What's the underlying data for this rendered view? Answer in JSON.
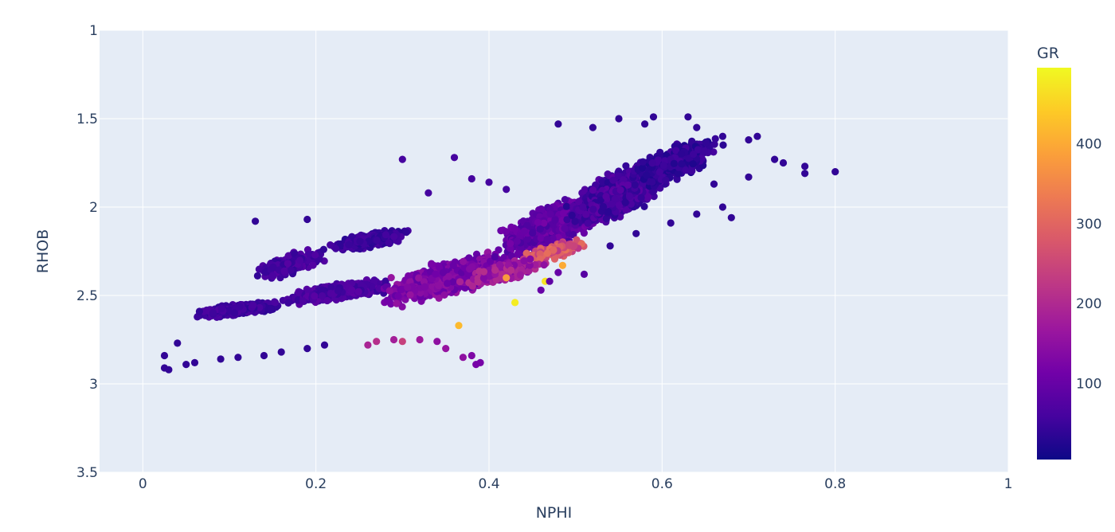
{
  "chart_data": {
    "type": "scatter",
    "title": "",
    "xlabel": "NPHI",
    "ylabel": "RHOB",
    "xlim": [
      -0.05,
      1.0
    ],
    "ylim": [
      1.0,
      3.5
    ],
    "y_reversed": true,
    "grid": true,
    "background_color": "#e5ecf6",
    "grid_color": "#ffffff",
    "x_ticks": [
      "0",
      "0.2",
      "0.4",
      "0.6",
      "0.8",
      "1"
    ],
    "x_tick_values": [
      0,
      0.2,
      0.4,
      0.6,
      0.8,
      1.0
    ],
    "y_ticks": [
      "1",
      "1.5",
      "2",
      "2.5",
      "3",
      "3.5"
    ],
    "y_tick_values": [
      1.0,
      1.5,
      2.0,
      2.5,
      3.0,
      3.5
    ],
    "colorbar": {
      "title": "GR",
      "range": [
        5,
        495
      ],
      "ticks": [
        "100",
        "200",
        "300",
        "400"
      ],
      "tick_values": [
        100,
        200,
        300,
        400
      ],
      "colorscale": [
        "#0d0887",
        "#46039f",
        "#7201a8",
        "#9c179e",
        "#bd3786",
        "#d8576b",
        "#ed7953",
        "#fb9f3a",
        "#fdca26",
        "#f0f921"
      ],
      "placement": "right"
    },
    "clusters": [
      {
        "x": [
          0.05,
          0.17
        ],
        "y": [
          2.52,
          2.64
        ],
        "gr": [
          35,
          70
        ],
        "n": 1100
      },
      {
        "x": [
          0.15,
          0.3
        ],
        "y": [
          2.38,
          2.58
        ],
        "gr": [
          45,
          90
        ],
        "n": 800
      },
      {
        "x": [
          0.12,
          0.22
        ],
        "y": [
          2.2,
          2.45
        ],
        "gr": [
          40,
          80
        ],
        "n": 260
      },
      {
        "x": [
          0.2,
          0.32
        ],
        "y": [
          2.1,
          2.28
        ],
        "gr": [
          30,
          65
        ],
        "n": 420
      },
      {
        "x": [
          0.26,
          0.45
        ],
        "y": [
          2.2,
          2.6
        ],
        "gr": [
          90,
          160
        ],
        "n": 1600
      },
      {
        "x": [
          0.4,
          0.55
        ],
        "y": [
          1.85,
          2.35
        ],
        "gr": [
          60,
          120
        ],
        "n": 1300
      },
      {
        "x": [
          0.48,
          0.62
        ],
        "y": [
          1.65,
          2.2
        ],
        "gr": [
          30,
          90
        ],
        "n": 1700
      },
      {
        "x": [
          0.55,
          0.68
        ],
        "y": [
          1.55,
          1.95
        ],
        "gr": [
          20,
          60
        ],
        "n": 600
      },
      {
        "x": [
          0.43,
          0.52
        ],
        "y": [
          2.15,
          2.35
        ],
        "gr": [
          220,
          320
        ],
        "n": 180
      },
      {
        "x": [
          0.36,
          0.48
        ],
        "y": [
          2.25,
          2.48
        ],
        "gr": [
          130,
          210
        ],
        "n": 200
      }
    ],
    "points": [
      {
        "x": 0.025,
        "y": 2.84,
        "gr": 40
      },
      {
        "x": 0.025,
        "y": 2.91,
        "gr": 40
      },
      {
        "x": 0.03,
        "y": 2.92,
        "gr": 40
      },
      {
        "x": 0.05,
        "y": 2.89,
        "gr": 40
      },
      {
        "x": 0.04,
        "y": 2.77,
        "gr": 40
      },
      {
        "x": 0.06,
        "y": 2.88,
        "gr": 40
      },
      {
        "x": 0.09,
        "y": 2.86,
        "gr": 40
      },
      {
        "x": 0.11,
        "y": 2.85,
        "gr": 40
      },
      {
        "x": 0.14,
        "y": 2.84,
        "gr": 40
      },
      {
        "x": 0.16,
        "y": 2.82,
        "gr": 40
      },
      {
        "x": 0.19,
        "y": 2.8,
        "gr": 40
      },
      {
        "x": 0.21,
        "y": 2.78,
        "gr": 40
      },
      {
        "x": 0.13,
        "y": 2.08,
        "gr": 40
      },
      {
        "x": 0.19,
        "y": 2.07,
        "gr": 40
      },
      {
        "x": 0.26,
        "y": 2.78,
        "gr": 190
      },
      {
        "x": 0.27,
        "y": 2.76,
        "gr": 210
      },
      {
        "x": 0.29,
        "y": 2.75,
        "gr": 180
      },
      {
        "x": 0.3,
        "y": 2.76,
        "gr": 240
      },
      {
        "x": 0.32,
        "y": 2.75,
        "gr": 170
      },
      {
        "x": 0.34,
        "y": 2.76,
        "gr": 150
      },
      {
        "x": 0.35,
        "y": 2.8,
        "gr": 160
      },
      {
        "x": 0.37,
        "y": 2.85,
        "gr": 150
      },
      {
        "x": 0.38,
        "y": 2.84,
        "gr": 130
      },
      {
        "x": 0.385,
        "y": 2.89,
        "gr": 120
      },
      {
        "x": 0.39,
        "y": 2.88,
        "gr": 120
      },
      {
        "x": 0.365,
        "y": 2.67,
        "gr": 420
      },
      {
        "x": 0.43,
        "y": 2.54,
        "gr": 480
      },
      {
        "x": 0.465,
        "y": 2.42,
        "gr": 470
      },
      {
        "x": 0.485,
        "y": 2.33,
        "gr": 400
      },
      {
        "x": 0.42,
        "y": 2.4,
        "gr": 380
      },
      {
        "x": 0.3,
        "y": 1.73,
        "gr": 60
      },
      {
        "x": 0.36,
        "y": 1.72,
        "gr": 60
      },
      {
        "x": 0.33,
        "y": 1.92,
        "gr": 60
      },
      {
        "x": 0.4,
        "y": 1.86,
        "gr": 60
      },
      {
        "x": 0.42,
        "y": 1.9,
        "gr": 60
      },
      {
        "x": 0.38,
        "y": 1.84,
        "gr": 60
      },
      {
        "x": 0.48,
        "y": 1.53,
        "gr": 40
      },
      {
        "x": 0.52,
        "y": 1.55,
        "gr": 40
      },
      {
        "x": 0.55,
        "y": 1.5,
        "gr": 40
      },
      {
        "x": 0.58,
        "y": 1.53,
        "gr": 40
      },
      {
        "x": 0.59,
        "y": 1.49,
        "gr": 40
      },
      {
        "x": 0.63,
        "y": 1.49,
        "gr": 40
      },
      {
        "x": 0.64,
        "y": 1.55,
        "gr": 40
      },
      {
        "x": 0.67,
        "y": 1.6,
        "gr": 40
      },
      {
        "x": 0.7,
        "y": 1.62,
        "gr": 40
      },
      {
        "x": 0.71,
        "y": 1.6,
        "gr": 40
      },
      {
        "x": 0.73,
        "y": 1.73,
        "gr": 40
      },
      {
        "x": 0.74,
        "y": 1.75,
        "gr": 40
      },
      {
        "x": 0.765,
        "y": 1.77,
        "gr": 40
      },
      {
        "x": 0.765,
        "y": 1.81,
        "gr": 40
      },
      {
        "x": 0.8,
        "y": 1.8,
        "gr": 40
      },
      {
        "x": 0.7,
        "y": 1.83,
        "gr": 40
      },
      {
        "x": 0.66,
        "y": 1.87,
        "gr": 40
      },
      {
        "x": 0.67,
        "y": 2.0,
        "gr": 40
      },
      {
        "x": 0.68,
        "y": 2.06,
        "gr": 40
      },
      {
        "x": 0.64,
        "y": 2.04,
        "gr": 40
      },
      {
        "x": 0.61,
        "y": 2.09,
        "gr": 40
      },
      {
        "x": 0.57,
        "y": 2.15,
        "gr": 40
      },
      {
        "x": 0.54,
        "y": 2.22,
        "gr": 40
      },
      {
        "x": 0.47,
        "y": 2.42,
        "gr": 90
      },
      {
        "x": 0.48,
        "y": 2.37,
        "gr": 100
      },
      {
        "x": 0.46,
        "y": 2.47,
        "gr": 100
      },
      {
        "x": 0.51,
        "y": 2.38,
        "gr": 80
      }
    ]
  }
}
